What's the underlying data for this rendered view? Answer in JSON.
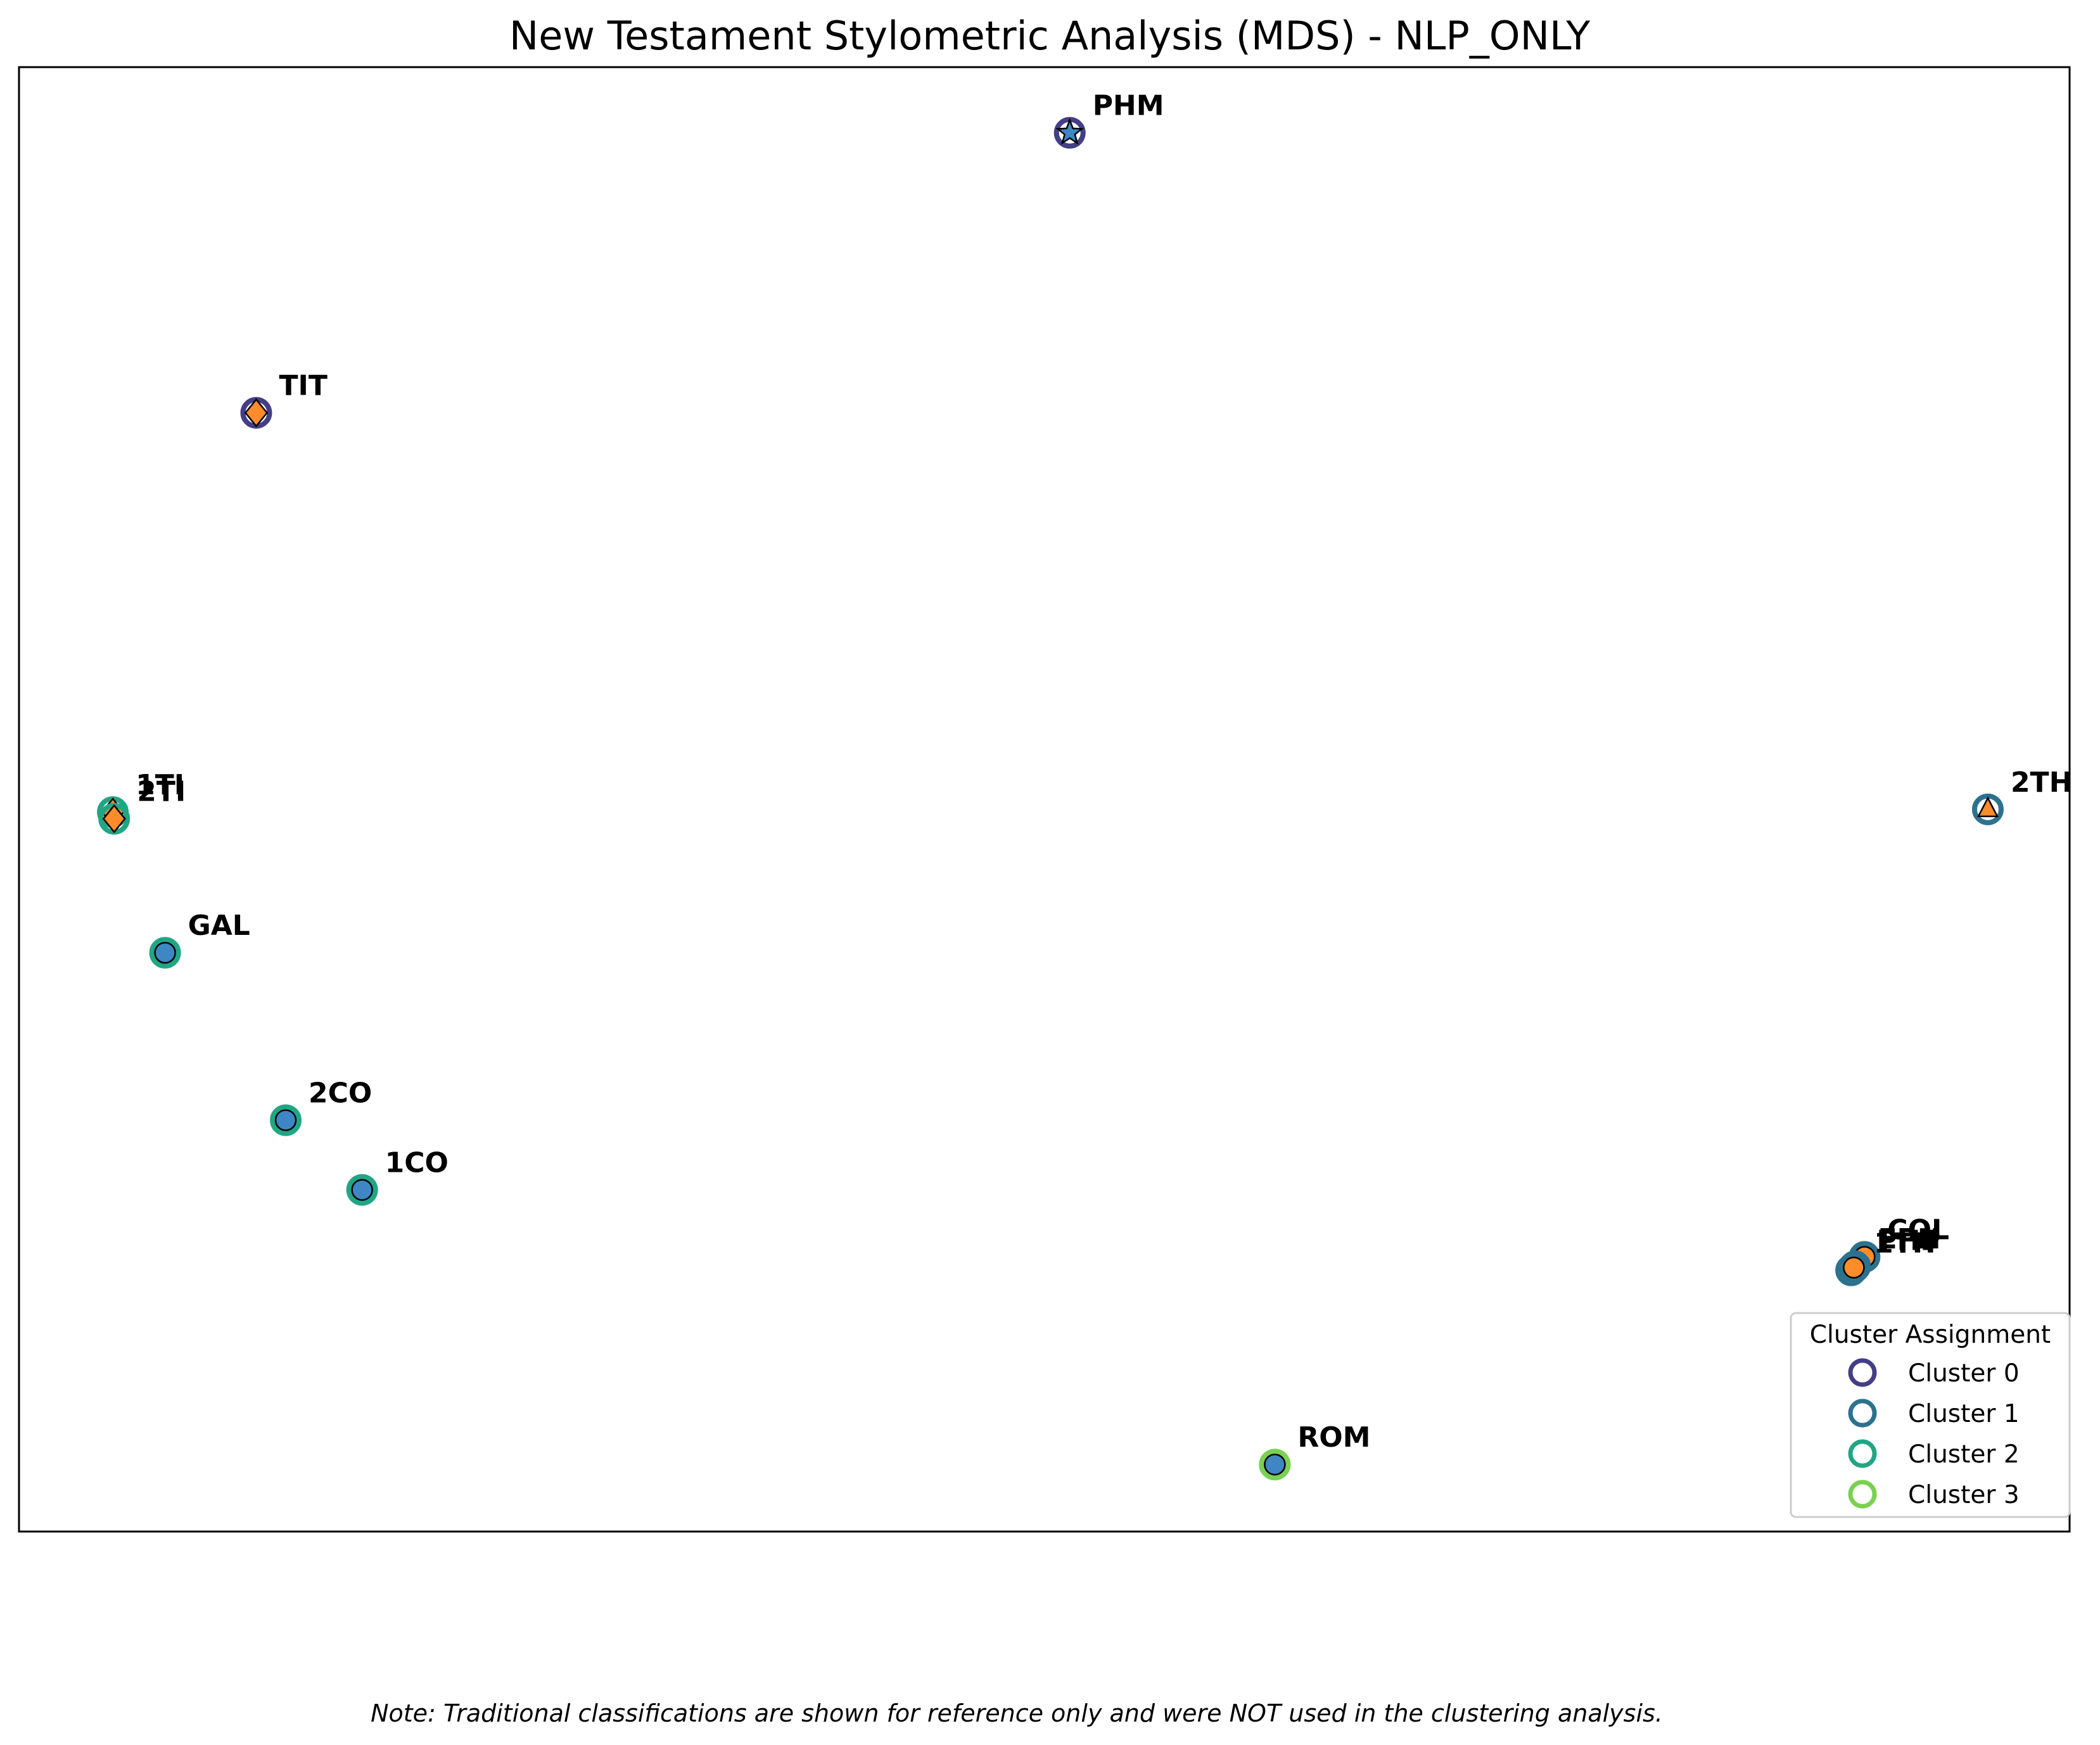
{
  "chart_data": {
    "type": "scatter",
    "title": "New Testament Stylometric Analysis (MDS) - NLP_ONLY",
    "xlabel": "",
    "ylabel": "",
    "grid": false,
    "axis_ticks": false,
    "xlim": [
      0,
      1530
    ],
    "ylim": [
      0,
      1093
    ],
    "legend": {
      "title": "Cluster Assignment",
      "placement": "lower-right",
      "entries": [
        {
          "name": "Cluster 0",
          "color": "#433e85"
        },
        {
          "name": "Cluster 1",
          "color": "#2c728e"
        },
        {
          "name": "Cluster 2",
          "color": "#21a685"
        },
        {
          "name": "Cluster 3",
          "color": "#7ad151"
        }
      ]
    },
    "marker_fill_colors": {
      "blue": "#3f86c4",
      "orange": "#ff8c2a"
    },
    "points": [
      {
        "label": "PHM",
        "x": 784,
        "y": 1044,
        "cluster": 0,
        "fill": "blue",
        "marker": "star"
      },
      {
        "label": "TIT",
        "x": 177,
        "y": 835,
        "cluster": 0,
        "fill": "orange",
        "marker": "diamond"
      },
      {
        "label": "1TI",
        "x": 70,
        "y": 537,
        "cluster": 2,
        "fill": "orange",
        "marker": "diamond"
      },
      {
        "label": "2TI",
        "x": 71,
        "y": 532,
        "cluster": 2,
        "fill": "orange",
        "marker": "diamond"
      },
      {
        "label": "2TH",
        "x": 1469,
        "y": 539,
        "cluster": 1,
        "fill": "orange",
        "marker": "triangle"
      },
      {
        "label": "GAL",
        "x": 109,
        "y": 432,
        "cluster": 2,
        "fill": "blue",
        "marker": "circle"
      },
      {
        "label": "2CO",
        "x": 199,
        "y": 307,
        "cluster": 2,
        "fill": "blue",
        "marker": "circle"
      },
      {
        "label": "1CO",
        "x": 256,
        "y": 255,
        "cluster": 2,
        "fill": "blue",
        "marker": "circle"
      },
      {
        "label": "COL",
        "x": 1377,
        "y": 205,
        "cluster": 1,
        "fill": "orange",
        "marker": "circle"
      },
      {
        "label": "EPH",
        "x": 1370,
        "y": 198,
        "cluster": 1,
        "fill": "orange",
        "marker": "circle"
      },
      {
        "label": "1TH",
        "x": 1367,
        "y": 195,
        "cluster": 1,
        "fill": "orange",
        "marker": "circle"
      },
      {
        "label": "PHP",
        "x": 1369,
        "y": 197,
        "cluster": 1,
        "fill": "orange",
        "marker": "circle"
      },
      {
        "label": "ROM",
        "x": 937,
        "y": 50,
        "cluster": 3,
        "fill": "blue",
        "marker": "circle"
      }
    ],
    "note": "Note: Traditional classifications are shown for reference only and were NOT used in the clustering analysis."
  }
}
